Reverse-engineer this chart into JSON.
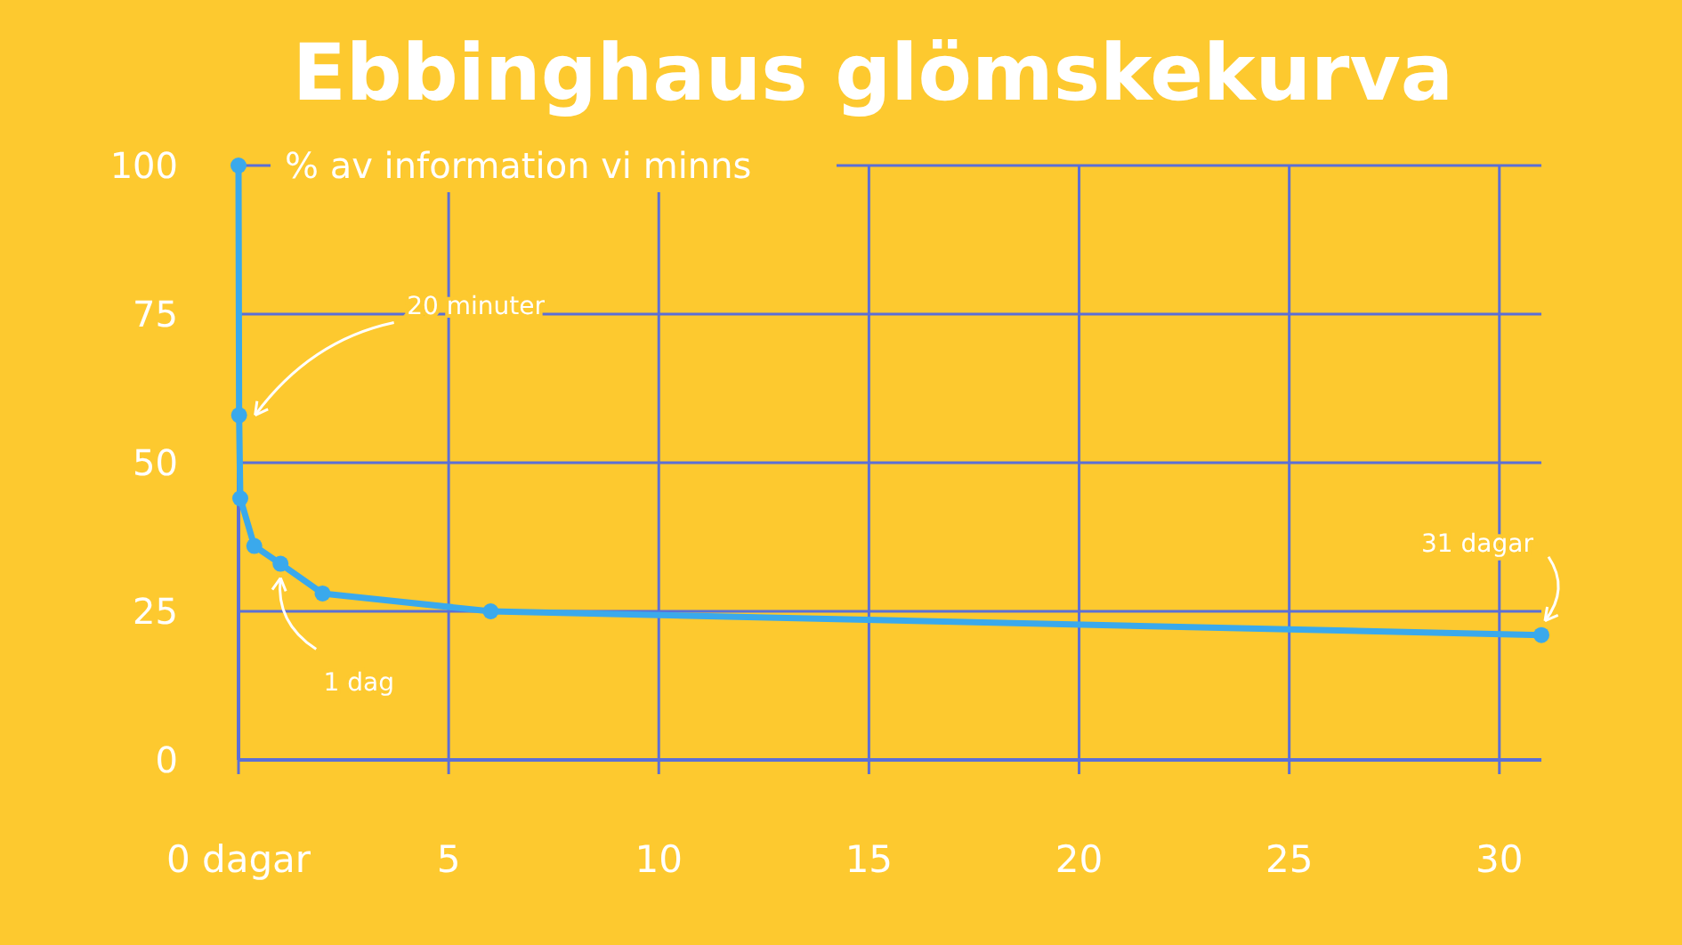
{
  "chart_data": {
    "type": "line",
    "title": "Ebbinghaus glömskekurva",
    "ylabel": "% av information vi minns",
    "series": [
      {
        "color": "#3aa9ec",
        "x": [
          0,
          0.014,
          0.042,
          0.375,
          1,
          2,
          6,
          31
        ],
        "values": [
          100,
          58,
          44,
          36,
          33,
          28,
          25,
          21
        ]
      }
    ],
    "xlim": [
      0,
      31
    ],
    "ylim": [
      0,
      100
    ],
    "xticks": [
      {
        "value": 0,
        "label": "0 dagar"
      },
      5,
      10,
      15,
      20,
      25,
      30
    ],
    "yticks": [
      0,
      25,
      50,
      75,
      100
    ],
    "grid": true,
    "marker": "circle",
    "line_style": "solid",
    "annotations": [
      {
        "text": "20 minuter",
        "x": 0.014,
        "y": 58
      },
      {
        "text": "1 dag",
        "x": 1,
        "y": 33
      },
      {
        "text": "31 dagar",
        "x": 31,
        "y": 21
      }
    ]
  }
}
